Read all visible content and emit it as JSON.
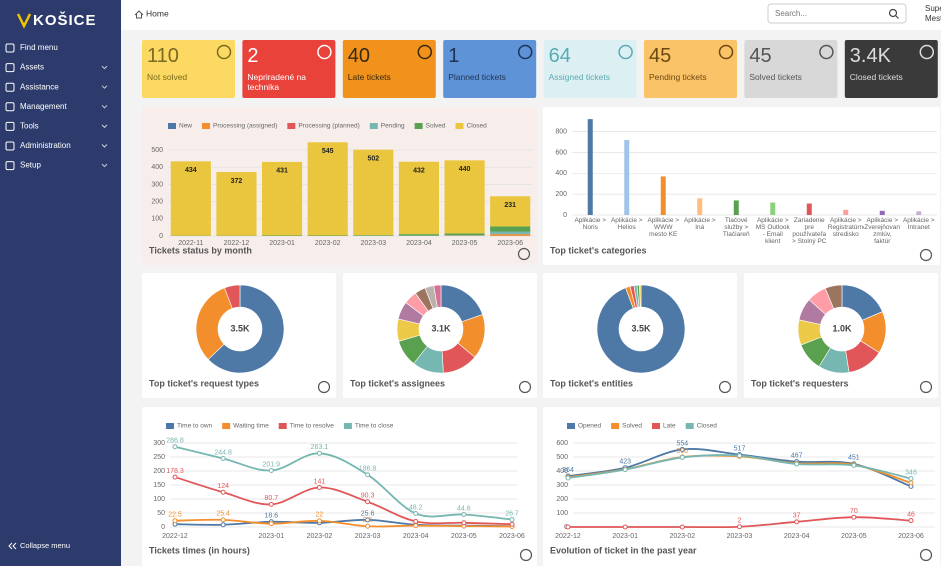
{
  "sidebar": {
    "logo": "KOŠICE",
    "menu": [
      "Find menu",
      "Assets",
      "Assistance",
      "Management",
      "Tools",
      "Administration",
      "Setup"
    ],
    "collapse": "Collapse menu"
  },
  "header": {
    "breadcrumb": "Home",
    "search_placeholder": "Search...",
    "user": [
      "Supe",
      "Mest"
    ]
  },
  "cards": [
    {
      "value": 110,
      "label": "Not solved",
      "color": "#fcd962",
      "text_color": "#7a6a20"
    },
    {
      "value": 2,
      "label": "Nepriradené na technika",
      "color": "#e8423a",
      "text_color": "#ffffff"
    },
    {
      "value": 40,
      "label": "Late tickets",
      "color": "#f0921c",
      "text_color": "#3a2a10"
    },
    {
      "value": 1,
      "label": "Planned tickets",
      "color": "#5f93d8",
      "text_color": "#1e3355"
    },
    {
      "value": 64,
      "label": "Assigned tickets",
      "color": "#dcf0f3",
      "text_color": "#5aaab5"
    },
    {
      "value": 45,
      "label": "Pending tickets",
      "color": "#fbc368",
      "text_color": "#6a4a10"
    },
    {
      "value": 45,
      "label": "Solved tickets",
      "color": "#d8d8d8",
      "text_color": "#555555"
    },
    {
      "value": "3.4K",
      "label": "Closed tickets",
      "color": "#3a3a3a",
      "text_color": "#dddddd"
    }
  ],
  "status_chart": {
    "type": "stacked_bar",
    "title": "Tickets status by month",
    "categories": [
      "2022-11",
      "2022-12",
      "2023-01",
      "2023-02",
      "2023-03",
      "2023-04",
      "2023-05",
      "2023-06"
    ],
    "series": [
      {
        "name": "New",
        "color": "#4e79a7",
        "values": [
          0,
          0,
          0,
          0,
          0,
          0,
          0,
          1
        ]
      },
      {
        "name": "Processing (assigned)",
        "color": "#f28e2b",
        "values": [
          0,
          0,
          0,
          0,
          0,
          1,
          2,
          10
        ]
      },
      {
        "name": "Processing (planned)",
        "color": "#e15759",
        "values": [
          0,
          0,
          0,
          0,
          0,
          0,
          0,
          0
        ]
      },
      {
        "name": "Pending",
        "color": "#76b7b2",
        "values": [
          0,
          0,
          0,
          0,
          1,
          2,
          3,
          15
        ]
      },
      {
        "name": "Solved",
        "color": "#59a14f",
        "values": [
          2,
          2,
          3,
          3,
          4,
          8,
          10,
          30
        ]
      },
      {
        "name": "Closed",
        "color": "#e9c63e",
        "values": [
          432,
          370,
          428,
          542,
          497,
          421,
          425,
          175
        ]
      }
    ],
    "total_labels": [
      "434",
      "372",
      "431",
      "545",
      "502",
      "432",
      "440",
      "231"
    ],
    "ylim": [
      0,
      560
    ],
    "yticks": [
      0,
      100,
      200,
      300,
      400,
      500
    ],
    "grid": true
  },
  "categories_chart": {
    "type": "bar",
    "title": "Top ticket's categories",
    "categories": [
      "Aplikácie > Noris",
      "Aplikácie > Helios",
      "Aplikácie > WWW mesto KE",
      "Aplikácie > Iná",
      "Tlačové služby > Tlačiareň",
      "Aplikácie > MS Outlook - Email klient",
      "Zariadenie pre používateľa > Stolný PC",
      "Aplikácie > Registratúrne stredisko",
      "Aplikácie > Zverejňovanie zmlúv, faktúr",
      "Aplikácie > Intranet"
    ],
    "values": [
      920,
      720,
      370,
      160,
      140,
      120,
      110,
      50,
      40,
      35
    ],
    "colors": [
      "#4e79a7",
      "#a0c4e8",
      "#f28e2b",
      "#ffbe7d",
      "#59a14f",
      "#8cd17d",
      "#e15759",
      "#ff9d9a",
      "#9467bd",
      "#c5b0d5"
    ],
    "ylim": [
      0,
      950
    ],
    "yticks": [
      0,
      200,
      400,
      600,
      800
    ],
    "grid": true
  },
  "donuts": [
    {
      "type": "donut",
      "title": "Top ticket's request types",
      "center_label": "3.5K",
      "values": [
        2200,
        1100,
        200
      ],
      "colors": [
        "#4e79a7",
        "#f28e2b",
        "#e15759"
      ]
    },
    {
      "type": "donut",
      "title": "Top ticket's assignees",
      "center_label": "3.1K",
      "values": [
        600,
        500,
        400,
        350,
        300,
        250,
        200,
        150,
        120,
        100,
        80
      ],
      "colors": [
        "#4e79a7",
        "#f28e2b",
        "#e15759",
        "#76b7b2",
        "#59a14f",
        "#edc948",
        "#b07aa1",
        "#ff9da7",
        "#9c755f",
        "#bab0ac",
        "#d37295"
      ]
    },
    {
      "type": "donut",
      "title": "Top ticket's entities",
      "center_label": "3.5K",
      "values": [
        3300,
        60,
        50,
        40,
        30,
        20
      ],
      "colors": [
        "#4e79a7",
        "#f28e2b",
        "#e15759",
        "#76b7b2",
        "#59a14f",
        "#edc948"
      ]
    },
    {
      "type": "donut",
      "title": "Top ticket's requesters",
      "center_label": "1.0K",
      "values": [
        180,
        150,
        130,
        110,
        100,
        90,
        80,
        70,
        60
      ],
      "colors": [
        "#4e79a7",
        "#f28e2b",
        "#e15759",
        "#76b7b2",
        "#59a14f",
        "#edc948",
        "#b07aa1",
        "#ff9da7",
        "#9c755f"
      ]
    }
  ],
  "times_chart": {
    "type": "line",
    "title": "Tickets times (in hours)",
    "categories": [
      "2022-12",
      null,
      "2023-01",
      "2023-02",
      "2023-03",
      "2023-04",
      "2023-05",
      "2023-06"
    ],
    "series": [
      {
        "name": "Time to own",
        "color": "#4e79a7",
        "values": [
          10,
          8,
          18.6,
          15,
          25.6,
          8,
          5,
          3
        ],
        "value_labels": [
          null,
          null,
          "18.6",
          null,
          "25.6",
          null,
          null,
          null
        ]
      },
      {
        "name": "Waiting time",
        "color": "#f28e2b",
        "values": [
          22.5,
          25.4,
          12,
          22,
          2.6,
          5,
          3,
          2
        ],
        "value_labels": [
          "22.5",
          "25.4",
          null,
          "22",
          "2.6",
          null,
          null,
          null
        ]
      },
      {
        "name": "Time to resolve",
        "color": "#e15759",
        "values": [
          178.3,
          124,
          80.7,
          141,
          90.3,
          20,
          15,
          10
        ],
        "value_labels": [
          "178.3",
          "124",
          "80.7",
          "141",
          "90.3",
          null,
          null,
          null
        ]
      },
      {
        "name": "Time to close",
        "color": "#76b7b2",
        "values": [
          286.8,
          244.8,
          201.9,
          263.1,
          186.8,
          48.2,
          44.6,
          26.7
        ],
        "value_labels": [
          "286.8",
          "244.8",
          "201.9",
          "263.1",
          "186.8",
          "48.2",
          "44.6",
          "26.7"
        ]
      }
    ],
    "ylim": [
      0,
      300
    ],
    "yticks": [
      0,
      50,
      100,
      150,
      200,
      250,
      300
    ],
    "grid": true
  },
  "evolution_chart": {
    "type": "line",
    "title": "Evolution of ticket in the past year",
    "categories": [
      "2022-12",
      "2023-01",
      "2023-02",
      "2023-03",
      "2023-04",
      "2023-05",
      "2023-06"
    ],
    "series": [
      {
        "name": "Opened",
        "color": "#4e79a7",
        "values": [
          364,
          423,
          554,
          517,
          467,
          451,
          290
        ],
        "value_labels": [
          "364",
          "423",
          "554",
          "517",
          "467",
          "451",
          null
        ]
      },
      {
        "name": "Solved",
        "color": "#f28e2b",
        "values": [
          355,
          412,
          500,
          505,
          455,
          445,
          315
        ],
        "value_labels": [
          null,
          null,
          "500",
          null,
          null,
          null,
          null
        ]
      },
      {
        "name": "Late",
        "color": "#e15759",
        "values": [
          0,
          0,
          0,
          2,
          37,
          70,
          46
        ],
        "value_labels": [
          null,
          null,
          null,
          "2",
          "37",
          "70",
          "46"
        ]
      },
      {
        "name": "Closed",
        "color": "#76b7b2",
        "values": [
          350,
          410,
          497,
          510,
          450,
          440,
          346
        ],
        "value_labels": [
          null,
          null,
          null,
          null,
          null,
          null,
          "346"
        ]
      }
    ],
    "ylim": [
      0,
      600
    ],
    "yticks": [
      0,
      100,
      200,
      300,
      400,
      500,
      600
    ],
    "grid": true
  }
}
